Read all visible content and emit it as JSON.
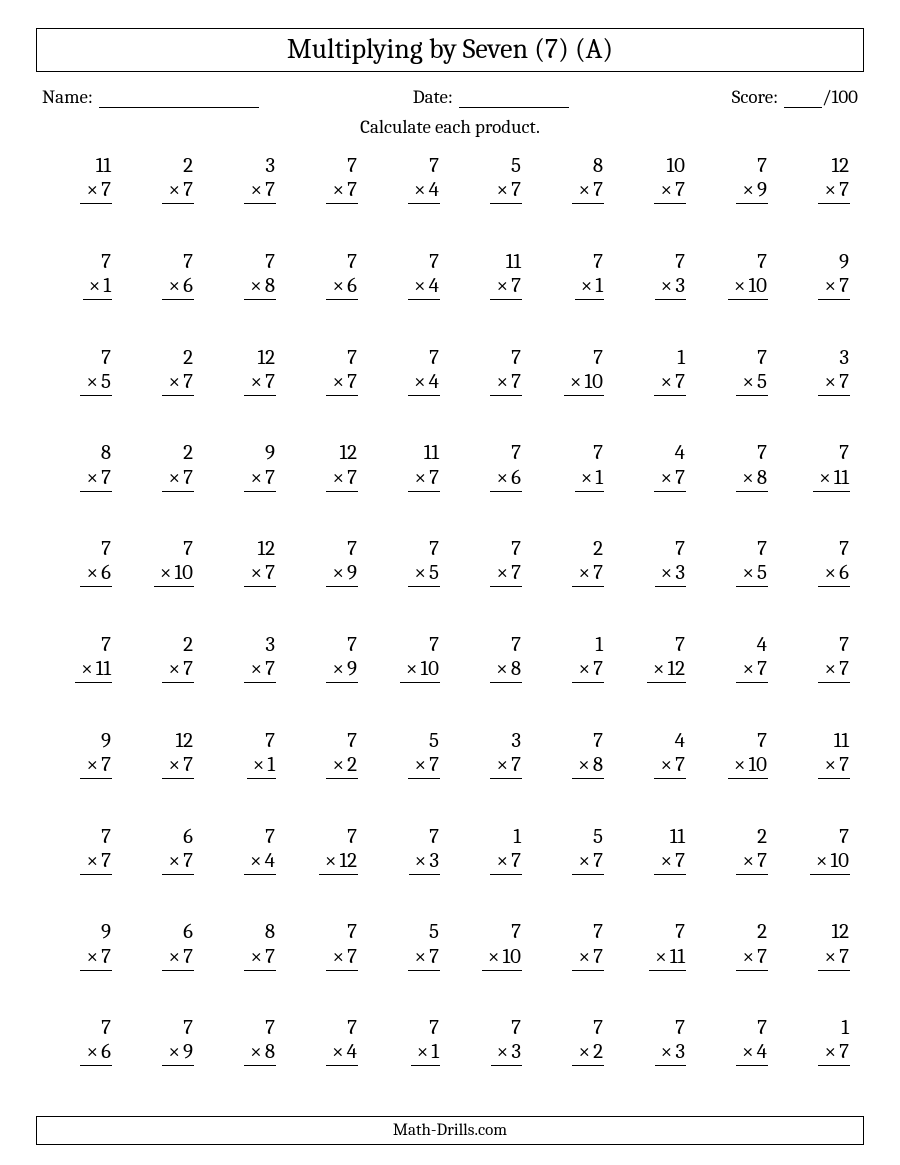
{
  "title": "Multiplying by Seven (7) (A)",
  "labels": {
    "name": "Name:",
    "date": "Date:",
    "score": "Score:",
    "total": "/100"
  },
  "instruction": "Calculate each product.",
  "footer": "Math-Drills.com",
  "mult_sign": "×",
  "columns": 10,
  "rows": 10,
  "font": {
    "body_size_pt": 16,
    "title_size_pt": 21,
    "color": "#000000",
    "bg": "#ffffff"
  },
  "problems": [
    [
      [
        11,
        7
      ],
      [
        2,
        7
      ],
      [
        3,
        7
      ],
      [
        7,
        7
      ],
      [
        7,
        4
      ],
      [
        5,
        7
      ],
      [
        8,
        7
      ],
      [
        10,
        7
      ],
      [
        7,
        9
      ],
      [
        12,
        7
      ]
    ],
    [
      [
        7,
        1
      ],
      [
        7,
        6
      ],
      [
        7,
        8
      ],
      [
        7,
        6
      ],
      [
        7,
        4
      ],
      [
        11,
        7
      ],
      [
        7,
        1
      ],
      [
        7,
        3
      ],
      [
        7,
        10
      ],
      [
        9,
        7
      ]
    ],
    [
      [
        7,
        5
      ],
      [
        2,
        7
      ],
      [
        12,
        7
      ],
      [
        7,
        7
      ],
      [
        7,
        4
      ],
      [
        7,
        7
      ],
      [
        7,
        10
      ],
      [
        1,
        7
      ],
      [
        7,
        5
      ],
      [
        3,
        7
      ]
    ],
    [
      [
        8,
        7
      ],
      [
        2,
        7
      ],
      [
        9,
        7
      ],
      [
        12,
        7
      ],
      [
        11,
        7
      ],
      [
        7,
        6
      ],
      [
        7,
        1
      ],
      [
        4,
        7
      ],
      [
        7,
        8
      ],
      [
        7,
        11
      ]
    ],
    [
      [
        7,
        6
      ],
      [
        7,
        10
      ],
      [
        12,
        7
      ],
      [
        7,
        9
      ],
      [
        7,
        5
      ],
      [
        7,
        7
      ],
      [
        2,
        7
      ],
      [
        7,
        3
      ],
      [
        7,
        5
      ],
      [
        7,
        6
      ]
    ],
    [
      [
        7,
        11
      ],
      [
        2,
        7
      ],
      [
        3,
        7
      ],
      [
        7,
        9
      ],
      [
        7,
        10
      ],
      [
        7,
        8
      ],
      [
        1,
        7
      ],
      [
        7,
        12
      ],
      [
        4,
        7
      ],
      [
        7,
        7
      ]
    ],
    [
      [
        9,
        7
      ],
      [
        12,
        7
      ],
      [
        7,
        1
      ],
      [
        7,
        2
      ],
      [
        5,
        7
      ],
      [
        3,
        7
      ],
      [
        7,
        8
      ],
      [
        4,
        7
      ],
      [
        7,
        10
      ],
      [
        11,
        7
      ]
    ],
    [
      [
        7,
        7
      ],
      [
        6,
        7
      ],
      [
        7,
        4
      ],
      [
        7,
        12
      ],
      [
        7,
        3
      ],
      [
        1,
        7
      ],
      [
        5,
        7
      ],
      [
        11,
        7
      ],
      [
        2,
        7
      ],
      [
        7,
        10
      ]
    ],
    [
      [
        9,
        7
      ],
      [
        6,
        7
      ],
      [
        8,
        7
      ],
      [
        7,
        7
      ],
      [
        5,
        7
      ],
      [
        7,
        10
      ],
      [
        7,
        7
      ],
      [
        7,
        11
      ],
      [
        2,
        7
      ],
      [
        12,
        7
      ]
    ],
    [
      [
        7,
        6
      ],
      [
        7,
        9
      ],
      [
        7,
        8
      ],
      [
        7,
        4
      ],
      [
        7,
        1
      ],
      [
        7,
        3
      ],
      [
        7,
        2
      ],
      [
        7,
        3
      ],
      [
        7,
        4
      ],
      [
        1,
        7
      ]
    ]
  ]
}
